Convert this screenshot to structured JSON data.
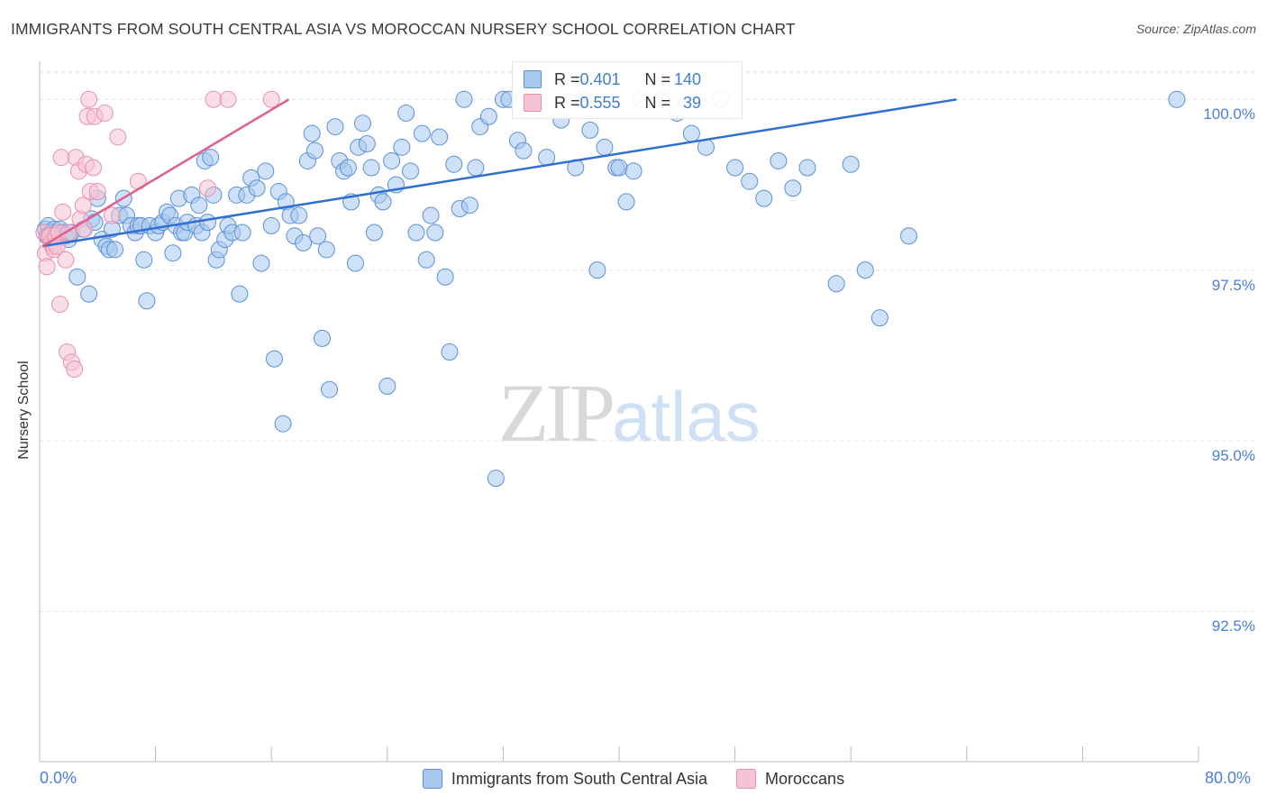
{
  "title": "IMMIGRANTS FROM SOUTH CENTRAL ASIA VS MOROCCAN NURSERY SCHOOL CORRELATION CHART",
  "source": "Source: ZipAtlas.com",
  "watermark": {
    "zip": "ZIP",
    "atlas": "atlas"
  },
  "colors": {
    "blue_fill": "#a8c8ef",
    "blue_stroke": "#5b8fd6",
    "blue_line": "#2f6fd0",
    "pink_fill": "#f6c3d3",
    "pink_stroke": "#e88fae",
    "pink_line": "#e05e8e",
    "grid": "#e2e2e2",
    "axis_text": "#4a7fd4"
  },
  "stats": {
    "rows": [
      {
        "r_label": "R = ",
        "r_value": "0.401",
        "n_label": "N = ",
        "n_value": "140"
      },
      {
        "r_label": "R = ",
        "r_value": "0.555",
        "n_label": "N = ",
        "n_value": "39"
      }
    ]
  },
  "legend": {
    "series1": "Immigrants from South Central Asia",
    "series2": "Moroccans"
  },
  "axis": {
    "x_min_label": "0.0%",
    "x_max_label": "80.0%",
    "y_label": "Nursery School"
  },
  "chart_data": {
    "type": "scatter",
    "title": "IMMIGRANTS FROM SOUTH CENTRAL ASIA VS MOROCCAN NURSERY SCHOOL CORRELATION CHART",
    "xlabel": "",
    "ylabel": "Nursery School",
    "xlim": [
      0,
      80
    ],
    "ylim": [
      90.3,
      100.4
    ],
    "y_ticks": [
      {
        "value": 100.0,
        "label": "100.0%"
      },
      {
        "value": 97.5,
        "label": "97.5%"
      },
      {
        "value": 95.0,
        "label": "95.0%"
      },
      {
        "value": 92.5,
        "label": "92.5%"
      }
    ],
    "x_ticks": [
      0,
      8,
      16,
      24,
      32,
      40,
      48,
      56,
      64,
      72,
      80
    ],
    "series": [
      {
        "name": "Immigrants from South Central Asia",
        "R": 0.401,
        "N": 140,
        "trend": {
          "x": [
            0.2,
            63.3
          ],
          "y": [
            97.85,
            100.0
          ]
        },
        "points": [
          [
            0.4,
            98.1
          ],
          [
            0.6,
            98.15
          ],
          [
            0.8,
            98.05
          ],
          [
            1.0,
            98.1
          ],
          [
            1.2,
            98.0
          ],
          [
            1.4,
            98.1
          ],
          [
            1.6,
            98.05
          ],
          [
            1.8,
            98.0
          ],
          [
            2.0,
            97.95
          ],
          [
            2.2,
            98.05
          ],
          [
            0.5,
            98.0
          ],
          [
            0.9,
            98.0
          ],
          [
            2.6,
            97.4
          ],
          [
            3.0,
            98.1
          ],
          [
            3.4,
            97.15
          ],
          [
            3.6,
            98.25
          ],
          [
            3.8,
            98.2
          ],
          [
            4.0,
            98.55
          ],
          [
            4.3,
            97.95
          ],
          [
            4.6,
            97.85
          ],
          [
            4.8,
            97.8
          ],
          [
            5.0,
            98.1
          ],
          [
            5.2,
            97.8
          ],
          [
            5.5,
            98.3
          ],
          [
            5.8,
            98.55
          ],
          [
            6.0,
            98.3
          ],
          [
            6.3,
            98.15
          ],
          [
            6.6,
            98.05
          ],
          [
            6.8,
            98.15
          ],
          [
            7.0,
            98.15
          ],
          [
            7.2,
            97.65
          ],
          [
            7.4,
            97.05
          ],
          [
            7.6,
            98.15
          ],
          [
            8.0,
            98.05
          ],
          [
            8.2,
            98.15
          ],
          [
            8.5,
            98.2
          ],
          [
            8.8,
            98.35
          ],
          [
            9.0,
            98.3
          ],
          [
            9.2,
            97.75
          ],
          [
            9.4,
            98.15
          ],
          [
            9.6,
            98.55
          ],
          [
            9.8,
            98.05
          ],
          [
            10.0,
            98.05
          ],
          [
            10.2,
            98.2
          ],
          [
            10.5,
            98.6
          ],
          [
            10.8,
            98.15
          ],
          [
            11.0,
            98.45
          ],
          [
            11.2,
            98.05
          ],
          [
            11.4,
            99.1
          ],
          [
            11.6,
            98.2
          ],
          [
            11.8,
            99.15
          ],
          [
            12.0,
            98.6
          ],
          [
            12.2,
            97.65
          ],
          [
            12.4,
            97.8
          ],
          [
            12.8,
            97.95
          ],
          [
            13.0,
            98.15
          ],
          [
            13.3,
            98.05
          ],
          [
            13.6,
            98.6
          ],
          [
            13.8,
            97.15
          ],
          [
            14.0,
            98.05
          ],
          [
            14.3,
            98.6
          ],
          [
            14.6,
            98.85
          ],
          [
            15.0,
            98.7
          ],
          [
            15.3,
            97.6
          ],
          [
            15.6,
            98.95
          ],
          [
            16.0,
            98.15
          ],
          [
            16.2,
            96.2
          ],
          [
            16.5,
            98.65
          ],
          [
            16.8,
            95.25
          ],
          [
            17.0,
            98.5
          ],
          [
            17.3,
            98.3
          ],
          [
            17.6,
            98.0
          ],
          [
            17.9,
            98.3
          ],
          [
            18.2,
            97.9
          ],
          [
            18.5,
            99.1
          ],
          [
            18.8,
            99.5
          ],
          [
            19.0,
            99.25
          ],
          [
            19.2,
            98.0
          ],
          [
            19.5,
            96.5
          ],
          [
            19.8,
            97.8
          ],
          [
            20.0,
            95.75
          ],
          [
            20.4,
            99.6
          ],
          [
            20.7,
            99.1
          ],
          [
            21.0,
            98.95
          ],
          [
            21.3,
            99.0
          ],
          [
            21.5,
            98.5
          ],
          [
            21.8,
            97.6
          ],
          [
            22.0,
            99.3
          ],
          [
            22.3,
            99.65
          ],
          [
            22.6,
            99.35
          ],
          [
            22.9,
            99.0
          ],
          [
            23.1,
            98.05
          ],
          [
            23.4,
            98.6
          ],
          [
            23.7,
            98.5
          ],
          [
            24.0,
            95.8
          ],
          [
            24.3,
            99.1
          ],
          [
            24.6,
            98.75
          ],
          [
            25.0,
            99.3
          ],
          [
            25.3,
            99.8
          ],
          [
            25.6,
            98.95
          ],
          [
            26.0,
            98.05
          ],
          [
            26.4,
            99.5
          ],
          [
            26.7,
            97.65
          ],
          [
            27.0,
            98.3
          ],
          [
            27.3,
            98.05
          ],
          [
            27.6,
            99.45
          ],
          [
            28.0,
            97.4
          ],
          [
            28.3,
            96.3
          ],
          [
            28.6,
            99.05
          ],
          [
            29.0,
            98.4
          ],
          [
            29.3,
            100.0
          ],
          [
            29.7,
            98.45
          ],
          [
            30.1,
            99.0
          ],
          [
            30.4,
            99.6
          ],
          [
            31.0,
            99.75
          ],
          [
            31.5,
            94.45
          ],
          [
            32.0,
            100.0
          ],
          [
            32.4,
            100.0
          ],
          [
            33.0,
            99.4
          ],
          [
            33.4,
            99.25
          ],
          [
            34.0,
            100.0
          ],
          [
            35.0,
            99.15
          ],
          [
            36.0,
            99.7
          ],
          [
            37.0,
            99.0
          ],
          [
            37.5,
            100.0
          ],
          [
            38.0,
            99.55
          ],
          [
            38.5,
            97.5
          ],
          [
            39.0,
            99.3
          ],
          [
            39.8,
            99.0
          ],
          [
            40.0,
            99.0
          ],
          [
            40.5,
            98.5
          ],
          [
            41.0,
            98.95
          ],
          [
            41.5,
            100.0
          ],
          [
            43.0,
            100.0
          ],
          [
            44.0,
            99.8
          ],
          [
            45.0,
            99.5
          ],
          [
            46.0,
            99.3
          ],
          [
            47.0,
            100.0
          ],
          [
            48.0,
            99.0
          ],
          [
            49.0,
            98.8
          ],
          [
            50.0,
            98.55
          ],
          [
            51.0,
            99.1
          ],
          [
            52.0,
            98.7
          ],
          [
            53.0,
            99.0
          ],
          [
            55.0,
            97.3
          ],
          [
            56.0,
            99.05
          ],
          [
            57.0,
            97.5
          ],
          [
            58.0,
            96.8
          ],
          [
            60.0,
            98.0
          ],
          [
            78.5,
            100.0
          ]
        ]
      },
      {
        "name": "Moroccans",
        "R": 0.555,
        "N": 39,
        "trend": {
          "x": [
            0.2,
            17.2
          ],
          "y": [
            97.85,
            100.0
          ]
        },
        "points": [
          [
            0.3,
            98.05
          ],
          [
            0.4,
            97.75
          ],
          [
            0.5,
            97.55
          ],
          [
            0.6,
            98.0
          ],
          [
            0.7,
            98.0
          ],
          [
            0.8,
            97.9
          ],
          [
            0.9,
            97.85
          ],
          [
            1.0,
            97.8
          ],
          [
            1.1,
            98.0
          ],
          [
            1.2,
            97.85
          ],
          [
            1.3,
            98.05
          ],
          [
            1.4,
            97.0
          ],
          [
            1.5,
            99.15
          ],
          [
            1.6,
            98.35
          ],
          [
            1.8,
            97.65
          ],
          [
            1.9,
            96.3
          ],
          [
            2.0,
            98.05
          ],
          [
            2.2,
            96.15
          ],
          [
            2.4,
            96.05
          ],
          [
            2.5,
            99.15
          ],
          [
            2.7,
            98.95
          ],
          [
            2.8,
            98.25
          ],
          [
            3.0,
            98.45
          ],
          [
            3.1,
            98.1
          ],
          [
            3.2,
            99.05
          ],
          [
            3.3,
            99.75
          ],
          [
            3.4,
            100.0
          ],
          [
            3.5,
            98.65
          ],
          [
            3.7,
            99.0
          ],
          [
            3.8,
            99.75
          ],
          [
            4.0,
            98.65
          ],
          [
            4.5,
            99.8
          ],
          [
            5.0,
            98.3
          ],
          [
            5.4,
            99.45
          ],
          [
            6.8,
            98.8
          ],
          [
            11.6,
            98.7
          ],
          [
            12.0,
            100.0
          ],
          [
            13.0,
            100.0
          ],
          [
            16.0,
            100.0
          ]
        ]
      }
    ]
  }
}
